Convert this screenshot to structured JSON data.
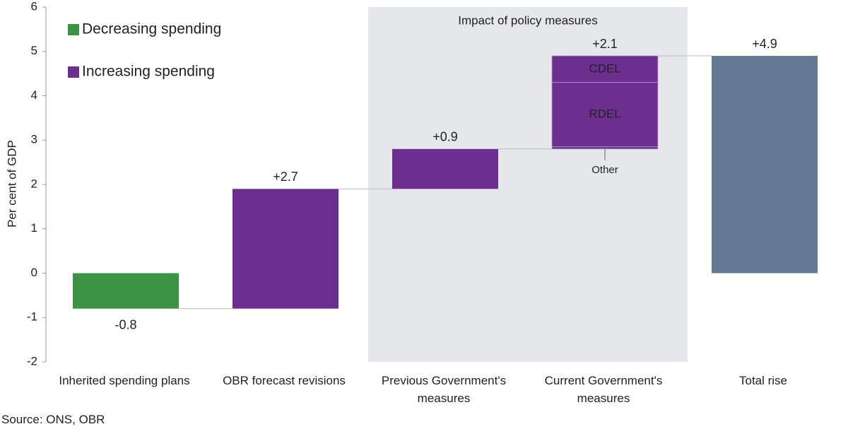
{
  "chart_data": {
    "type": "waterfall",
    "ylabel": "Per cent of GDP",
    "categories": [
      "Inherited spending plans",
      "OBR forecast revisions",
      "Previous Government's measures",
      "Current Government's measures",
      "Total rise"
    ],
    "values": [
      -0.8,
      2.7,
      0.9,
      2.1,
      4.9
    ],
    "value_labels": [
      "-0.8",
      "+2.7",
      "+0.9",
      "+2.1",
      "+4.9"
    ],
    "measure": [
      "relative",
      "relative",
      "relative",
      "relative",
      "total"
    ],
    "colors": [
      "#3a9441",
      "#6a2f8f",
      "#6a2f8f",
      "#6a2f8f",
      "#647a92"
    ],
    "breakdown": {
      "index": 3,
      "segments": [
        {
          "name": "Other",
          "value": 0.05
        },
        {
          "name": "RDEL",
          "value": 1.45
        },
        {
          "name": "CDEL",
          "value": 0.6
        }
      ]
    },
    "legend": [
      {
        "name": "Decreasing spending",
        "color": "#3a9441"
      },
      {
        "name": "Increasing spending",
        "color": "#6a2f8f"
      }
    ],
    "annotations": [
      {
        "text": "Impact of policy measures",
        "categories": [
          2,
          3
        ],
        "color": "#e6e7eb"
      }
    ],
    "ylim": [
      -2,
      6
    ],
    "yticks": [
      -2,
      -1,
      0,
      1,
      2,
      3,
      4,
      5,
      6
    ],
    "grid": false,
    "source": "Source: ONS, OBR"
  }
}
